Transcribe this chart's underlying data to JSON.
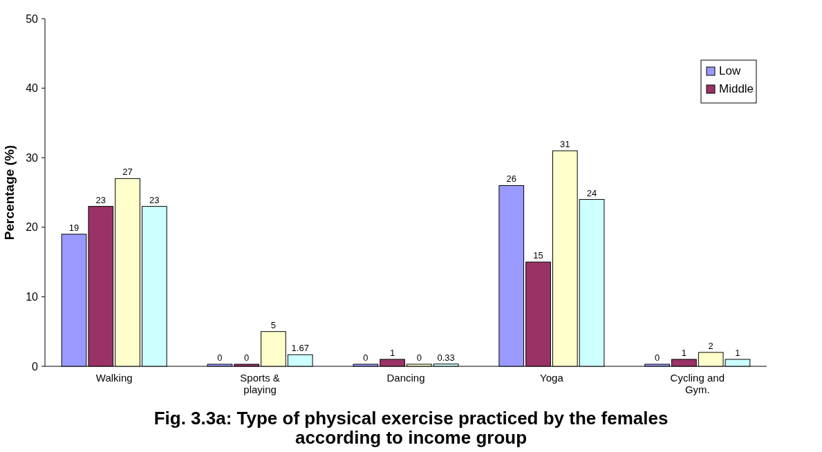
{
  "chart_data": {
    "type": "bar",
    "title": "Fig. 3.3a: Type  of physical exercise practiced by the females according to income group",
    "ylabel": "Percentage (%)",
    "categories": [
      "Walking",
      "Sports & playing",
      "Dancing",
      "Yoga",
      "Cycling and Gym."
    ],
    "series": [
      {
        "name": "Low",
        "color": "#9999ff",
        "values": [
          19,
          0,
          0,
          26,
          0
        ]
      },
      {
        "name": "Middle",
        "color": "#993366",
        "values": [
          23,
          0,
          1,
          15,
          1
        ]
      },
      {
        "color": "#ffffcc",
        "values": [
          27,
          5,
          0,
          31,
          2
        ]
      },
      {
        "color": "#ccffff",
        "values": [
          23,
          1.67,
          0.33,
          24,
          1
        ]
      }
    ],
    "ylim": [
      0,
      50
    ],
    "yticks": [
      0,
      10,
      20,
      30,
      40,
      50
    ],
    "data_labels": true,
    "legend": "top right",
    "grid": false
  }
}
